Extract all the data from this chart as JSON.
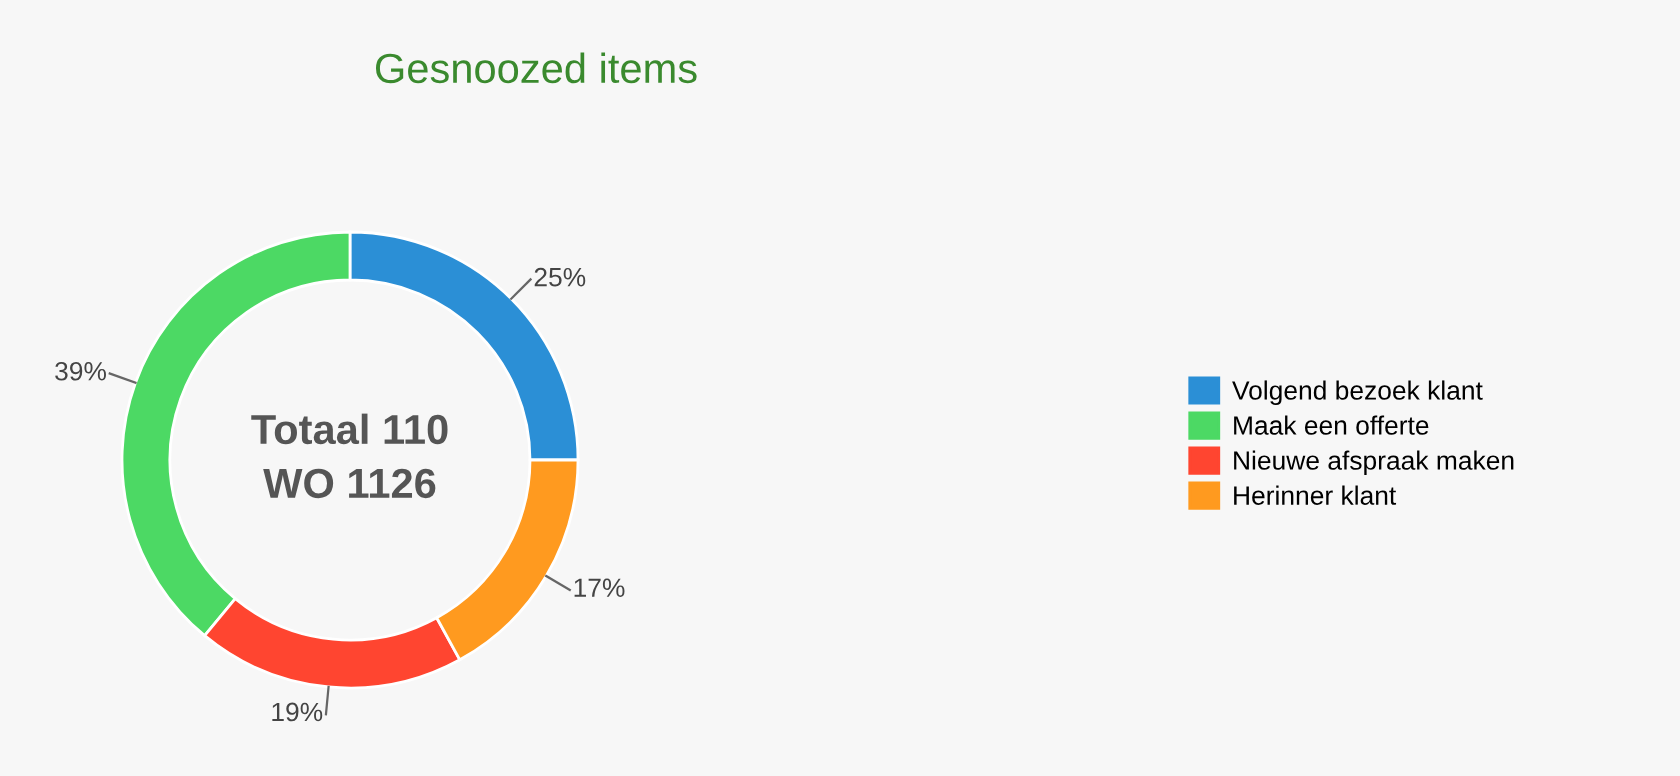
{
  "chart_data": {
    "type": "donut",
    "title": "Gesnoozed items",
    "categories": [
      "Volgend bezoek klant",
      "Maak een offerte",
      "Nieuwe afspraak maken",
      "Herinner klant"
    ],
    "values": [
      25,
      39,
      19,
      17
    ],
    "colors": [
      "#2b8fd6",
      "#4cd964",
      "#ff4530",
      "#ff9a1f"
    ],
    "annotations": [
      "Totaal 110\nWO 1126"
    ],
    "value_labels": [
      "25%",
      "39%",
      "19%",
      "17%"
    ],
    "legend": "right"
  }
}
